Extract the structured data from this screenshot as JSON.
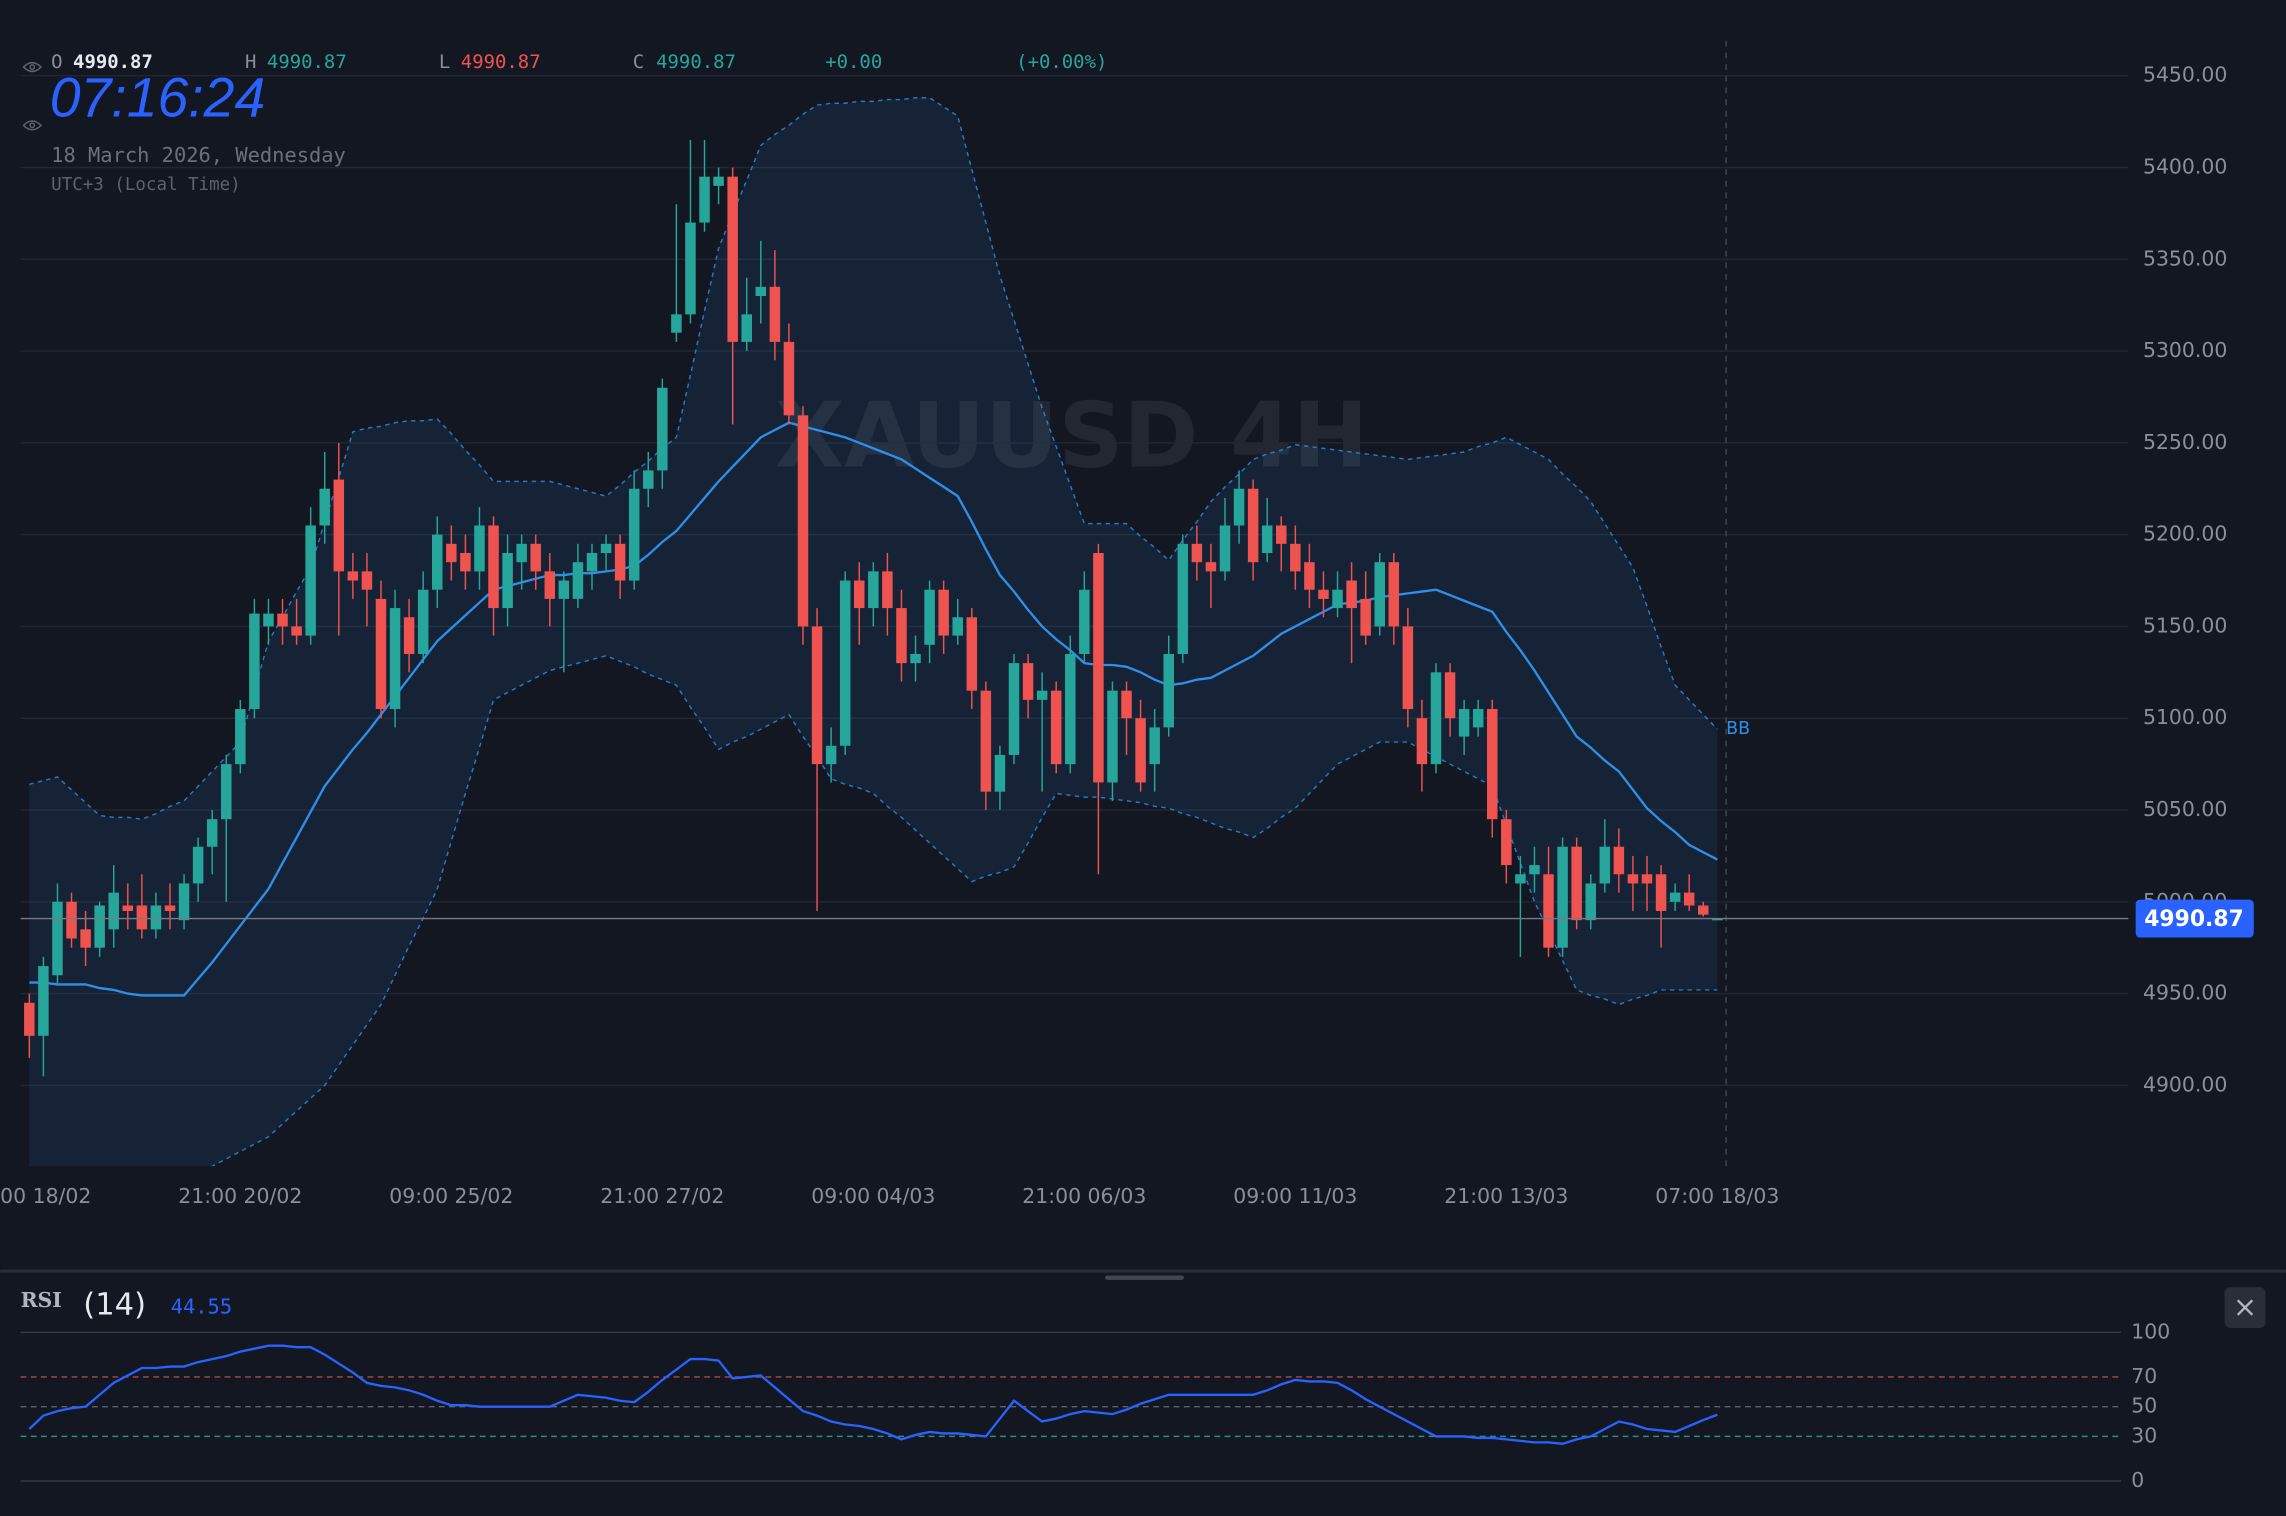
{
  "header": {
    "ohlc_labels": [
      "O",
      "H",
      "L",
      "C"
    ],
    "change": "+0.00",
    "change_pct": "(+0.00%)",
    "clock": "07:16:24",
    "date": "18 March 2026, Wednesday",
    "timezone": "UTC+3 (Local Time)"
  },
  "chart_data": {
    "type": "candlestick",
    "watermark": "XAUUSD 4H",
    "categories": [
      "00 18/02",
      null,
      null,
      null,
      null,
      null,
      null,
      null,
      null,
      null,
      null,
      null,
      null,
      null,
      null,
      "21:00 20/02",
      null,
      null,
      null,
      null,
      null,
      null,
      null,
      null,
      null,
      null,
      null,
      null,
      null,
      null,
      "09:00 25/02",
      null,
      null,
      null,
      null,
      null,
      null,
      null,
      null,
      null,
      null,
      null,
      null,
      null,
      null,
      "21:00 27/02",
      null,
      null,
      null,
      null,
      null,
      null,
      null,
      null,
      null,
      null,
      null,
      null,
      null,
      null,
      "09:00 04/03",
      null,
      null,
      null,
      null,
      null,
      null,
      null,
      null,
      null,
      null,
      null,
      null,
      null,
      null,
      "21:00 06/03",
      null,
      null,
      null,
      null,
      null,
      null,
      null,
      null,
      null,
      null,
      null,
      null,
      null,
      null,
      "09:00 11/03",
      null,
      null,
      null,
      null,
      null,
      null,
      null,
      null,
      null,
      null,
      null,
      null,
      null,
      null,
      "21:00 13/03",
      null,
      null,
      null,
      null,
      null,
      null,
      null,
      null,
      null,
      null,
      null,
      null,
      null,
      null,
      "07:00 18/03"
    ],
    "open": [
      4945,
      4927,
      4960,
      5000,
      4985,
      4975,
      4985,
      4998,
      4998,
      4985,
      4998,
      4990,
      5010,
      5030,
      5045,
      5075,
      5105,
      5150,
      5157,
      5150,
      5145,
      5205,
      5230,
      5180,
      5180,
      5165,
      5105,
      5155,
      5135,
      5170,
      5195,
      5190,
      5180,
      5205,
      5160,
      5185,
      5195,
      5180,
      5165,
      5165,
      5180,
      5190,
      5195,
      5175,
      5225,
      5235,
      5310,
      5320,
      5370,
      5390,
      5395,
      5305,
      5330,
      5335,
      5305,
      5265,
      5150,
      5075,
      5085,
      5175,
      5160,
      5180,
      5160,
      5130,
      5140,
      5170,
      5145,
      5155,
      5115,
      5060,
      5080,
      5130,
      5110,
      5115,
      5075,
      5135,
      5190,
      5065,
      5115,
      5100,
      5075,
      5095,
      5135,
      5195,
      5185,
      5180,
      5205,
      5225,
      5190,
      5205,
      5195,
      5185,
      5170,
      5160,
      5175,
      5165,
      5150,
      5185,
      5150,
      5100,
      5075,
      5125,
      5090,
      5095,
      5105,
      5045,
      5010,
      5015,
      5015,
      4975,
      5030,
      4990,
      5010,
      5030,
      5015,
      5015,
      5015,
      5000,
      5005,
      4998,
      4990.87
    ],
    "high": [
      4950,
      4970,
      5010,
      5005,
      4995,
      5000,
      5020,
      5010,
      5015,
      5005,
      5010,
      5015,
      5035,
      5050,
      5080,
      5110,
      5165,
      5165,
      5165,
      5165,
      5215,
      5245,
      5250,
      5190,
      5190,
      5175,
      5170,
      5165,
      5180,
      5210,
      5205,
      5200,
      5215,
      5210,
      5200,
      5200,
      5200,
      5190,
      5180,
      5195,
      5195,
      5200,
      5200,
      5235,
      5245,
      5285,
      5380,
      5415,
      5415,
      5400,
      5400,
      5340,
      5360,
      5355,
      5315,
      5270,
      5160,
      5095,
      5180,
      5185,
      5185,
      5190,
      5170,
      5145,
      5175,
      5175,
      5165,
      5160,
      5120,
      5085,
      5135,
      5135,
      5125,
      5120,
      5145,
      5180,
      5195,
      5120,
      5120,
      5110,
      5105,
      5145,
      5200,
      5205,
      5195,
      5220,
      5235,
      5230,
      5220,
      5210,
      5205,
      5195,
      5180,
      5180,
      5185,
      5180,
      5190,
      5190,
      5160,
      5110,
      5130,
      5130,
      5110,
      5110,
      5110,
      5050,
      5025,
      5030,
      5030,
      5035,
      5035,
      5015,
      5045,
      5040,
      5025,
      5025,
      5020,
      5010,
      5015,
      5000,
      4990.87
    ],
    "low": [
      4915,
      4905,
      4955,
      4975,
      4965,
      4970,
      4975,
      4985,
      4980,
      4980,
      4985,
      4985,
      5000,
      5015,
      5000,
      5070,
      5100,
      5140,
      5140,
      5140,
      5140,
      5195,
      5145,
      5165,
      5150,
      5100,
      5095,
      5125,
      5130,
      5160,
      5175,
      5170,
      5170,
      5145,
      5150,
      5170,
      5170,
      5150,
      5125,
      5160,
      5170,
      5180,
      5165,
      5170,
      5215,
      5225,
      5305,
      5315,
      5365,
      5380,
      5260,
      5300,
      5315,
      5295,
      5260,
      5140,
      4995,
      5065,
      5080,
      5140,
      5150,
      5145,
      5120,
      5120,
      5130,
      5135,
      5140,
      5105,
      5050,
      5050,
      5075,
      5100,
      5060,
      5070,
      5070,
      5130,
      5015,
      5055,
      5080,
      5060,
      5060,
      5090,
      5130,
      5175,
      5160,
      5175,
      5195,
      5175,
      5185,
      5180,
      5170,
      5160,
      5155,
      5155,
      5130,
      5140,
      5145,
      5140,
      5095,
      5060,
      5070,
      5090,
      5080,
      5090,
      5035,
      5010,
      4970,
      5005,
      4970,
      4970,
      4985,
      4985,
      5005,
      5005,
      4995,
      4995,
      4975,
      4995,
      4995,
      4992,
      4990.87
    ],
    "close": [
      4927,
      4965,
      5000,
      4980,
      4975,
      4998,
      5005,
      4995,
      4985,
      4998,
      4995,
      5010,
      5030,
      5045,
      5075,
      5105,
      5157,
      5157,
      5150,
      5145,
      5205,
      5225,
      5180,
      5175,
      5170,
      5105,
      5160,
      5135,
      5170,
      5200,
      5185,
      5180,
      5205,
      5160,
      5190,
      5195,
      5180,
      5165,
      5175,
      5185,
      5190,
      5195,
      5175,
      5225,
      5235,
      5280,
      5320,
      5370,
      5395,
      5395,
      5305,
      5320,
      5335,
      5305,
      5265,
      5150,
      5075,
      5085,
      5175,
      5160,
      5180,
      5160,
      5130,
      5135,
      5170,
      5145,
      5155,
      5115,
      5060,
      5080,
      5130,
      5110,
      5115,
      5075,
      5135,
      5170,
      5065,
      5115,
      5100,
      5065,
      5095,
      5135,
      5195,
      5185,
      5180,
      5205,
      5225,
      5185,
      5205,
      5195,
      5180,
      5170,
      5165,
      5170,
      5160,
      5145,
      5185,
      5150,
      5105,
      5075,
      5125,
      5100,
      5105,
      5105,
      5045,
      5020,
      5015,
      5020,
      4975,
      5030,
      4990,
      5010,
      5030,
      5015,
      5010,
      5010,
      4995,
      5005,
      4998,
      4993,
      4990.87
    ],
    "up_color": "#26a69a",
    "down_color": "#ef5350",
    "last_price_color": "#2962ff",
    "ylim": [
      4856,
      5469
    ],
    "yticks": [
      {
        "value": 4900,
        "label": "4900.00"
      },
      {
        "value": 4950,
        "label": "4950.00"
      },
      {
        "value": 5000,
        "label": "5000.00"
      },
      {
        "value": 5050,
        "label": "5050.00"
      },
      {
        "value": 5100,
        "label": "5100.00"
      },
      {
        "value": 5150,
        "label": "5150.00"
      },
      {
        "value": 5200,
        "label": "5200.00"
      },
      {
        "value": 5250,
        "label": "5250.00"
      },
      {
        "value": 5300,
        "label": "5300.00"
      },
      {
        "value": 5350,
        "label": "5350.00"
      },
      {
        "value": 5400,
        "label": "5400.00"
      },
      {
        "value": 5450,
        "label": "5450.00"
      }
    ],
    "grid": true,
    "bands": {
      "name": "BB",
      "color": "#2f8fe8",
      "upper": [
        5064,
        5066,
        5068,
        5061,
        5054,
        5047,
        5046,
        5046,
        5045,
        5048,
        5052,
        5055,
        5063,
        5071,
        5079,
        5087,
        5115,
        5142,
        5155,
        5169,
        5182,
        5207,
        5231,
        5256,
        5258,
        5259,
        5261,
        5262,
        5262,
        5263,
        5255,
        5246,
        5238,
        5229,
        5229,
        5229,
        5229,
        5229,
        5227,
        5225,
        5223,
        5221,
        5227,
        5234,
        5240,
        5247,
        5253,
        5287,
        5322,
        5356,
        5375,
        5393,
        5412,
        5418,
        5423,
        5429,
        5434,
        5435,
        5435,
        5436,
        5436,
        5437,
        5437,
        5438,
        5438,
        5433,
        5428,
        5399,
        5370,
        5341,
        5317,
        5293,
        5269,
        5248,
        5227,
        5206,
        5206,
        5206,
        5206,
        5199,
        5193,
        5186,
        5197,
        5207,
        5218,
        5226,
        5233,
        5241,
        5244,
        5246,
        5249,
        5248,
        5247,
        5246,
        5245,
        5244,
        5243,
        5242,
        5241,
        5242,
        5243,
        5244,
        5245,
        5248,
        5250,
        5253,
        5249,
        5245,
        5241,
        5233,
        5226,
        5218,
        5206,
        5194,
        5182,
        5161,
        5139,
        5118,
        5110,
        5102,
        5094
      ],
      "middle": [
        4956,
        4956,
        4955,
        4955,
        4955,
        4953,
        4952,
        4950,
        4949,
        4949,
        4949,
        4949,
        4958,
        4967,
        4977,
        4987,
        4997,
        5007,
        5021,
        5035,
        5049,
        5063,
        5073,
        5083,
        5092,
        5102,
        5112,
        5122,
        5132,
        5142,
        5149,
        5156,
        5163,
        5170,
        5172,
        5174,
        5176,
        5178,
        5178,
        5179,
        5179,
        5180,
        5181,
        5183,
        5189,
        5196,
        5202,
        5211,
        5220,
        5229,
        5237,
        5245,
        5253,
        5257,
        5261,
        5259,
        5257,
        5255,
        5253,
        5250,
        5247,
        5244,
        5241,
        5236,
        5231,
        5226,
        5221,
        5207,
        5192,
        5178,
        5169,
        5159,
        5150,
        5143,
        5137,
        5130,
        5129,
        5129,
        5128,
        5125,
        5121,
        5118,
        5119,
        5121,
        5122,
        5126,
        5130,
        5134,
        5140,
        5146,
        5150,
        5154,
        5158,
        5162,
        5163,
        5164,
        5166,
        5167,
        5168,
        5169,
        5170,
        5167,
        5164,
        5161,
        5158,
        5147,
        5137,
        5126,
        5114,
        5102,
        5090,
        5084,
        5077,
        5071,
        5061,
        5051,
        5044,
        5038,
        5031,
        5027,
        5023
      ],
      "lower": [
        4830,
        4830,
        4830,
        4830,
        4830,
        4831,
        4833,
        4834,
        4835,
        4839,
        4843,
        4848,
        4852,
        4856,
        4860,
        4864,
        4868,
        4872,
        4879,
        4886,
        4893,
        4900,
        4911,
        4922,
        4933,
        4944,
        4960,
        4976,
        4991,
        5007,
        5033,
        5059,
        5084,
        5110,
        5114,
        5118,
        5122,
        5126,
        5128,
        5130,
        5132,
        5134,
        5131,
        5128,
        5124,
        5121,
        5118,
        5106,
        5095,
        5083,
        5087,
        5090,
        5094,
        5098,
        5102,
        5090,
        5079,
        5067,
        5064,
        5062,
        5059,
        5052,
        5046,
        5039,
        5032,
        5025,
        5018,
        5011,
        5014,
        5016,
        5019,
        5032,
        5046,
        5059,
        5058,
        5057,
        5057,
        5056,
        5055,
        5054,
        5052,
        5051,
        5048,
        5046,
        5043,
        5040,
        5038,
        5035,
        5040,
        5046,
        5051,
        5059,
        5067,
        5075,
        5079,
        5083,
        5087,
        5087,
        5087,
        5083,
        5079,
        5075,
        5071,
        5067,
        5063,
        5042,
        5021,
        5000,
        4984,
        4968,
        4952,
        4949,
        4947,
        4944,
        4947,
        4949,
        4952,
        4952,
        4952,
        4952,
        4952
      ]
    },
    "rsi": {
      "type": "line",
      "name": "RSI",
      "period": "(14)",
      "color": "#2962ff",
      "values": [
        35,
        44,
        47,
        49,
        50,
        58,
        66,
        71,
        76,
        76,
        77,
        77,
        80,
        82,
        84,
        87,
        89,
        91,
        91,
        90,
        90,
        85,
        79,
        73,
        66,
        64,
        63,
        61,
        58,
        54,
        51,
        51,
        50,
        50,
        50,
        50,
        50,
        50,
        54,
        58,
        57,
        56,
        54,
        53,
        60,
        68,
        75,
        82,
        82,
        81,
        69,
        70,
        71,
        63,
        55,
        47,
        44,
        40,
        38,
        37,
        35,
        32,
        28,
        31,
        33,
        32,
        32,
        31,
        30,
        42,
        54,
        47,
        40,
        42,
        45,
        47,
        46,
        45,
        48,
        52,
        55,
        58,
        58,
        58,
        58,
        58,
        58,
        58,
        61,
        65,
        68,
        67,
        67,
        66,
        61,
        55,
        50,
        45,
        40,
        35,
        30,
        30,
        30,
        29,
        29,
        28,
        27,
        26,
        26,
        25,
        28,
        30,
        35,
        40,
        38,
        35,
        34,
        33,
        37,
        41,
        44.55
      ],
      "ylim": [
        0,
        100
      ],
      "yticks": [
        0,
        30,
        50,
        70,
        100
      ],
      "tick_colors": [
        "#363a45",
        "#2b8c84",
        "#5d6270",
        "#b04848",
        "#363a45"
      ]
    }
  }
}
